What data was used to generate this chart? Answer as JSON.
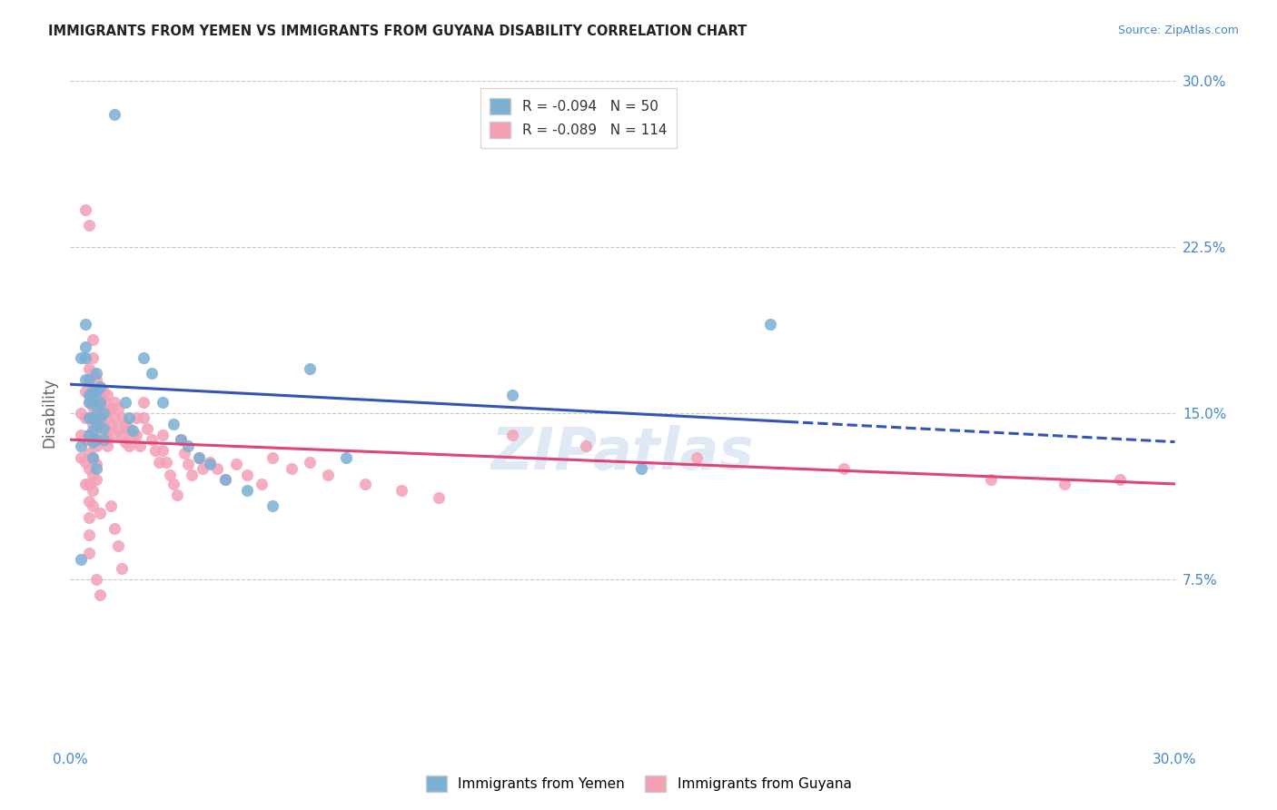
{
  "title": "IMMIGRANTS FROM YEMEN VS IMMIGRANTS FROM GUYANA DISABILITY CORRELATION CHART",
  "source": "Source: ZipAtlas.com",
  "ylabel": "Disability",
  "xlim": [
    0.0,
    0.3
  ],
  "ylim": [
    0.0,
    0.3
  ],
  "background_color": "#ffffff",
  "grid_color": "#c8c8c8",
  "watermark": "ZIPatlas",
  "yemen_color": "#7bafd4",
  "guyana_color": "#f4a0b5",
  "trend_yemen_color": "#3355bb",
  "trend_guyana_color": "#dd4477",
  "tick_label_color": "#4488cc",
  "yemen_scatter_x": [
    0.012,
    0.003,
    0.004,
    0.004,
    0.005,
    0.005,
    0.005,
    0.005,
    0.006,
    0.006,
    0.006,
    0.006,
    0.006,
    0.006,
    0.007,
    0.007,
    0.007,
    0.007,
    0.007,
    0.007,
    0.008,
    0.008,
    0.008,
    0.009,
    0.009,
    0.009,
    0.003,
    0.004,
    0.004,
    0.005,
    0.015,
    0.016,
    0.017,
    0.02,
    0.022,
    0.025,
    0.028,
    0.03,
    0.032,
    0.035,
    0.038,
    0.042,
    0.048,
    0.055,
    0.065,
    0.075,
    0.12,
    0.155,
    0.19,
    0.003
  ],
  "yemen_scatter_y": [
    0.285,
    0.135,
    0.19,
    0.175,
    0.165,
    0.155,
    0.148,
    0.14,
    0.16,
    0.155,
    0.148,
    0.142,
    0.137,
    0.13,
    0.168,
    0.16,
    0.153,
    0.145,
    0.138,
    0.125,
    0.162,
    0.155,
    0.148,
    0.15,
    0.143,
    0.138,
    0.175,
    0.18,
    0.165,
    0.158,
    0.155,
    0.148,
    0.142,
    0.175,
    0.168,
    0.155,
    0.145,
    0.138,
    0.135,
    0.13,
    0.127,
    0.12,
    0.115,
    0.108,
    0.17,
    0.13,
    0.158,
    0.125,
    0.19,
    0.084
  ],
  "guyana_scatter_x": [
    0.003,
    0.003,
    0.003,
    0.004,
    0.004,
    0.004,
    0.004,
    0.004,
    0.005,
    0.005,
    0.005,
    0.005,
    0.005,
    0.005,
    0.005,
    0.005,
    0.005,
    0.005,
    0.005,
    0.005,
    0.006,
    0.006,
    0.006,
    0.006,
    0.006,
    0.006,
    0.006,
    0.006,
    0.006,
    0.007,
    0.007,
    0.007,
    0.007,
    0.007,
    0.007,
    0.007,
    0.008,
    0.008,
    0.008,
    0.008,
    0.009,
    0.009,
    0.009,
    0.01,
    0.01,
    0.01,
    0.01,
    0.011,
    0.011,
    0.012,
    0.012,
    0.012,
    0.013,
    0.013,
    0.014,
    0.014,
    0.015,
    0.015,
    0.016,
    0.016,
    0.017,
    0.018,
    0.018,
    0.019,
    0.02,
    0.02,
    0.021,
    0.022,
    0.023,
    0.024,
    0.025,
    0.025,
    0.026,
    0.027,
    0.028,
    0.029,
    0.03,
    0.031,
    0.032,
    0.033,
    0.035,
    0.036,
    0.038,
    0.04,
    0.042,
    0.045,
    0.048,
    0.052,
    0.055,
    0.06,
    0.065,
    0.07,
    0.08,
    0.09,
    0.1,
    0.12,
    0.14,
    0.17,
    0.21,
    0.25,
    0.27,
    0.285,
    0.004,
    0.005,
    0.006,
    0.006,
    0.007,
    0.008,
    0.009,
    0.01,
    0.011,
    0.012,
    0.013,
    0.014
  ],
  "guyana_scatter_y": [
    0.15,
    0.14,
    0.13,
    0.16,
    0.148,
    0.138,
    0.128,
    0.118,
    0.17,
    0.162,
    0.155,
    0.148,
    0.14,
    0.132,
    0.125,
    0.118,
    0.11,
    0.103,
    0.095,
    0.087,
    0.168,
    0.16,
    0.153,
    0.145,
    0.138,
    0.13,
    0.122,
    0.115,
    0.108,
    0.165,
    0.158,
    0.15,
    0.142,
    0.135,
    0.127,
    0.12,
    0.162,
    0.155,
    0.148,
    0.105,
    0.16,
    0.152,
    0.145,
    0.158,
    0.15,
    0.142,
    0.135,
    0.152,
    0.145,
    0.155,
    0.148,
    0.14,
    0.152,
    0.143,
    0.148,
    0.14,
    0.145,
    0.137,
    0.143,
    0.135,
    0.14,
    0.148,
    0.14,
    0.135,
    0.155,
    0.148,
    0.143,
    0.138,
    0.133,
    0.128,
    0.14,
    0.133,
    0.128,
    0.122,
    0.118,
    0.113,
    0.138,
    0.132,
    0.127,
    0.122,
    0.13,
    0.125,
    0.128,
    0.125,
    0.12,
    0.127,
    0.122,
    0.118,
    0.13,
    0.125,
    0.128,
    0.122,
    0.118,
    0.115,
    0.112,
    0.14,
    0.135,
    0.13,
    0.125,
    0.12,
    0.118,
    0.12,
    0.242,
    0.235,
    0.183,
    0.175,
    0.075,
    0.068,
    0.155,
    0.138,
    0.108,
    0.098,
    0.09,
    0.08
  ],
  "trend_yemen_x_start": 0.0,
  "trend_yemen_y_start": 0.163,
  "trend_yemen_x_end": 0.3,
  "trend_yemen_y_end": 0.137,
  "trend_yemen_solid_end": 0.195,
  "trend_guyana_x_start": 0.0,
  "trend_guyana_y_start": 0.138,
  "trend_guyana_x_end": 0.3,
  "trend_guyana_y_end": 0.118
}
